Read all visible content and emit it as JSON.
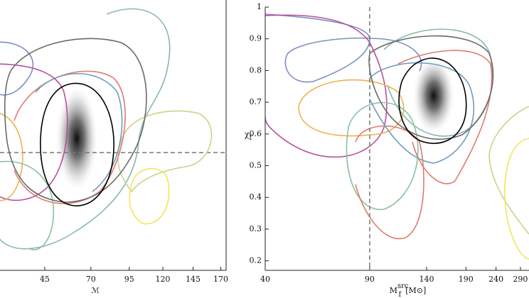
{
  "chart_data": [
    {
      "type": "contour",
      "xlabel": {
        "base": "ℳ"
      },
      "xscale": "sqrt",
      "xlim": [
        26,
        175
      ],
      "xticks": [
        45,
        70,
        95,
        120,
        145,
        170
      ]
    },
    {
      "type": "contour",
      "xlabel": {
        "base": "M",
        "sub": "f",
        "sup": "src",
        "unit": "[M⊙]"
      },
      "ylabel": {
        "base": "χ",
        "sub": "f"
      },
      "xscale": "log",
      "xlim": [
        40,
        310
      ],
      "xticks": [
        40,
        90,
        140,
        190,
        240,
        290
      ],
      "ylim": [
        0.17,
        1.0
      ],
      "yticks": [
        0.2,
        0.3,
        0.4,
        0.5,
        0.6,
        0.7,
        0.8,
        0.9,
        1.0
      ],
      "vline": 90
    }
  ]
}
